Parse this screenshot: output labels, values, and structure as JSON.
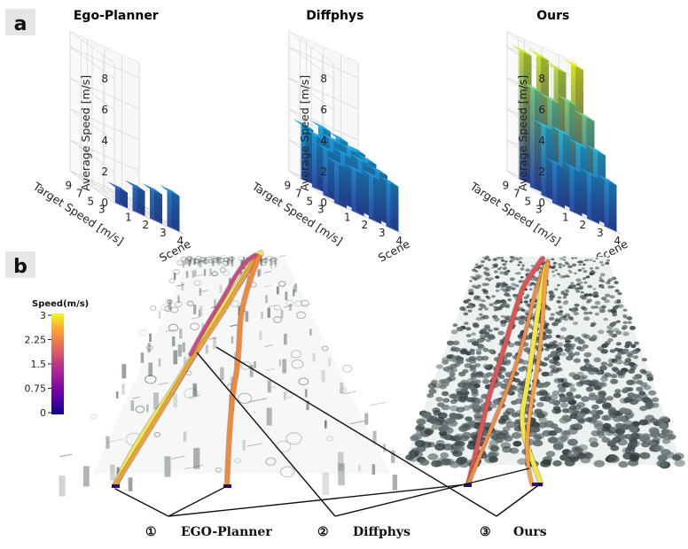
{
  "panel_a_label": "a",
  "panel_b_label": "b",
  "chart_data": [
    {
      "type": "bar3d",
      "title": "Ego-Planner",
      "zlabel": "Average Speed [m/s]",
      "xlabel": "Scene",
      "ylabel": "Target Speed [m/s]",
      "scenes": [
        1,
        2,
        3,
        4
      ],
      "target_speeds": [
        3,
        5,
        7,
        9
      ],
      "zticks": [
        0,
        2,
        4,
        6,
        8
      ],
      "xtick_labels": [
        "1",
        "2",
        "3",
        "4"
      ],
      "ytick_labels": [
        "3",
        "5",
        "7",
        "9"
      ],
      "zlim": [
        0,
        9
      ],
      "values": [
        [
          1.0,
          1.6,
          1.9,
          2.3
        ]
      ]
    },
    {
      "type": "bar3d",
      "title": "Diffphys",
      "zlabel": "Average Speed [m/s]",
      "xlabel": "Scene",
      "ylabel": "Target Speed [m/s]",
      "scenes": [
        1,
        2,
        3,
        4
      ],
      "target_speeds": [
        3,
        5,
        7,
        9
      ],
      "zticks": [
        0,
        2,
        4,
        6,
        8
      ],
      "xtick_labels": [
        "1",
        "2",
        "3",
        "4"
      ],
      "ytick_labels": [
        "3",
        "5",
        "7",
        "9"
      ],
      "zlim": [
        0,
        9
      ],
      "values": [
        [
          2.6,
          2.7,
          2.8,
          2.9
        ],
        [
          3.0,
          3.2,
          3.3,
          3.1
        ],
        [
          3.4,
          3.6,
          3.5,
          3.3
        ],
        [
          3.5,
          3.9,
          3.7,
          3.4
        ]
      ]
    },
    {
      "type": "bar3d",
      "title": "Ours",
      "zlabel": "Average Speed [m/s]",
      "xlabel": "Scene",
      "ylabel": "Target Speed [m/s]",
      "scenes": [
        1,
        2,
        3,
        4
      ],
      "target_speeds": [
        3,
        5,
        7,
        9
      ],
      "zticks": [
        0,
        2,
        4,
        6,
        8
      ],
      "xtick_labels": [
        "1",
        "2",
        "3",
        "4"
      ],
      "ytick_labels": [
        "3",
        "5",
        "7",
        "9"
      ],
      "zlim": [
        0,
        9
      ],
      "values": [
        [
          2.6,
          2.8,
          2.9,
          3.0
        ],
        [
          4.5,
          4.6,
          4.3,
          4.4
        ],
        [
          6.4,
          6.2,
          6.6,
          6.1
        ],
        [
          8.3,
          8.5,
          8.2,
          8.9
        ]
      ]
    }
  ],
  "colorbar": {
    "title": "Speed(m/s)",
    "ticks": [
      "3",
      "2.25",
      "1.5",
      "0.75",
      "0"
    ],
    "colors": [
      "#0d0887",
      "#6a00a8",
      "#b12a90",
      "#e16462",
      "#fca636",
      "#f0f921"
    ]
  },
  "legend": [
    {
      "number": "①",
      "label": "EGO-Planner"
    },
    {
      "number": "②",
      "label": "Diffphys"
    },
    {
      "number": "③",
      "label": "Ours"
    }
  ],
  "bar_colors": {
    "low": "#2c3e9e",
    "mid": "#1aa7d8",
    "high": "#d8e21e"
  }
}
